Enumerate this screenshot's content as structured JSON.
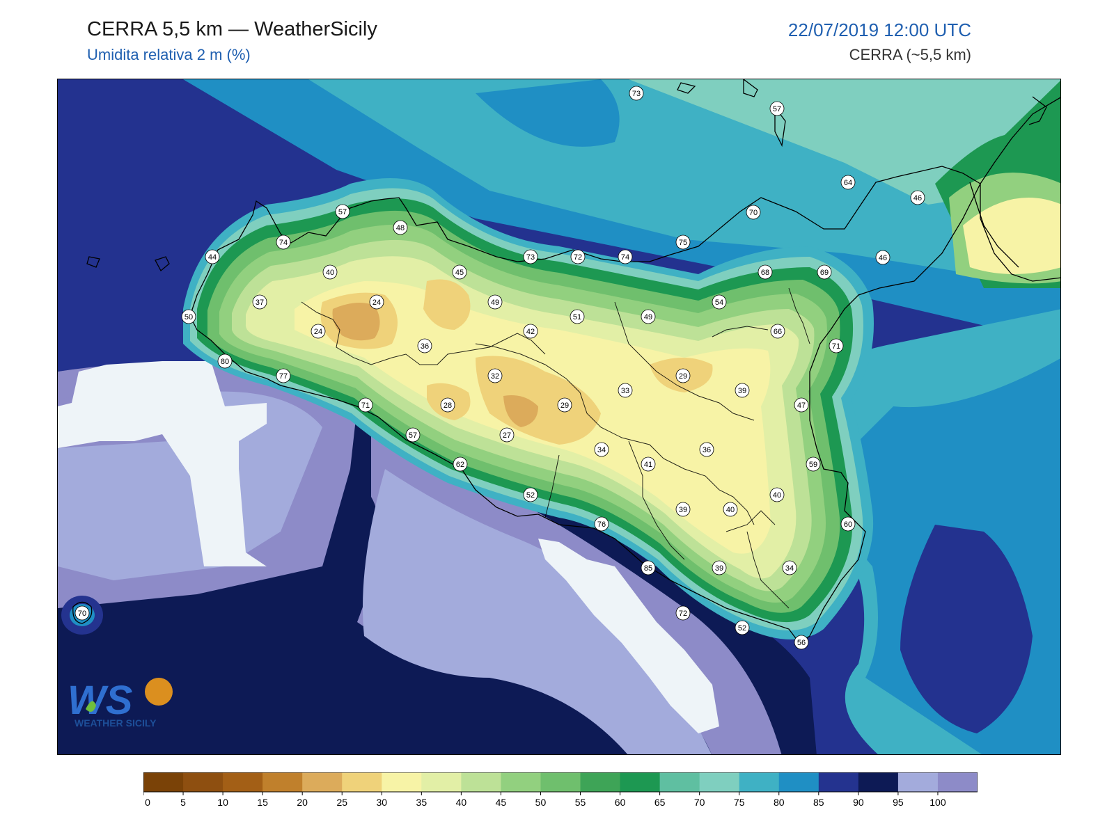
{
  "header": {
    "title": "CERRA 5,5 km — WeatherSicily",
    "subtitle": "Umidita relativa 2 m (%)",
    "datetime": "22/07/2019 12:00 UTC",
    "model": "CERRA (~5,5 km)"
  },
  "logo": {
    "mark": "WS",
    "text": "WEATHER SICILY"
  },
  "colorbar": {
    "ticks": [
      "0",
      "5",
      "10",
      "15",
      "20",
      "25",
      "30",
      "35",
      "40",
      "45",
      "50",
      "55",
      "60",
      "65",
      "70",
      "75",
      "80",
      "85",
      "90",
      "95",
      "100"
    ],
    "colors": [
      "#7a4207",
      "#8e4f10",
      "#a35f16",
      "#c0802c",
      "#dcab5b",
      "#efd27a",
      "#f7f3a6",
      "#e2efa6",
      "#bde197",
      "#92d07f",
      "#6fbf6d",
      "#3ea457",
      "#1d9852",
      "#5fbfa1",
      "#7fcfbf",
      "#3fb1c4",
      "#1f8fc4",
      "#24338f",
      "#0d1a55",
      "#a3abdc",
      "#8d8bc8"
    ]
  },
  "stations": [
    {
      "v": "73"
    },
    {
      "v": "57"
    },
    {
      "v": "64"
    },
    {
      "v": "46"
    },
    {
      "v": "70"
    },
    {
      "v": "57"
    },
    {
      "v": "48"
    },
    {
      "v": "74"
    },
    {
      "v": "44"
    },
    {
      "v": "40"
    },
    {
      "v": "45"
    },
    {
      "v": "73"
    },
    {
      "v": "72"
    },
    {
      "v": "74"
    },
    {
      "v": "75"
    },
    {
      "v": "68"
    },
    {
      "v": "69"
    },
    {
      "v": "46"
    },
    {
      "v": "37"
    },
    {
      "v": "24"
    },
    {
      "v": "49"
    },
    {
      "v": "51"
    },
    {
      "v": "49"
    },
    {
      "v": "54"
    },
    {
      "v": "66"
    },
    {
      "v": "71"
    },
    {
      "v": "50"
    },
    {
      "v": "24"
    },
    {
      "v": "36"
    },
    {
      "v": "42"
    },
    {
      "v": "80"
    },
    {
      "v": "77"
    },
    {
      "v": "32"
    },
    {
      "v": "29"
    },
    {
      "v": "33"
    },
    {
      "v": "39"
    },
    {
      "v": "71"
    },
    {
      "v": "28"
    },
    {
      "v": "29"
    },
    {
      "v": "47"
    },
    {
      "v": "57"
    },
    {
      "v": "27"
    },
    {
      "v": "34"
    },
    {
      "v": "36"
    },
    {
      "v": "62"
    },
    {
      "v": "41"
    },
    {
      "v": "59"
    },
    {
      "v": "52"
    },
    {
      "v": "40"
    },
    {
      "v": "39"
    },
    {
      "v": "40"
    },
    {
      "v": "76"
    },
    {
      "v": "60"
    },
    {
      "v": "85"
    },
    {
      "v": "39"
    },
    {
      "v": "34"
    },
    {
      "v": "70"
    },
    {
      "v": "72"
    },
    {
      "v": "52"
    },
    {
      "v": "56"
    }
  ]
}
